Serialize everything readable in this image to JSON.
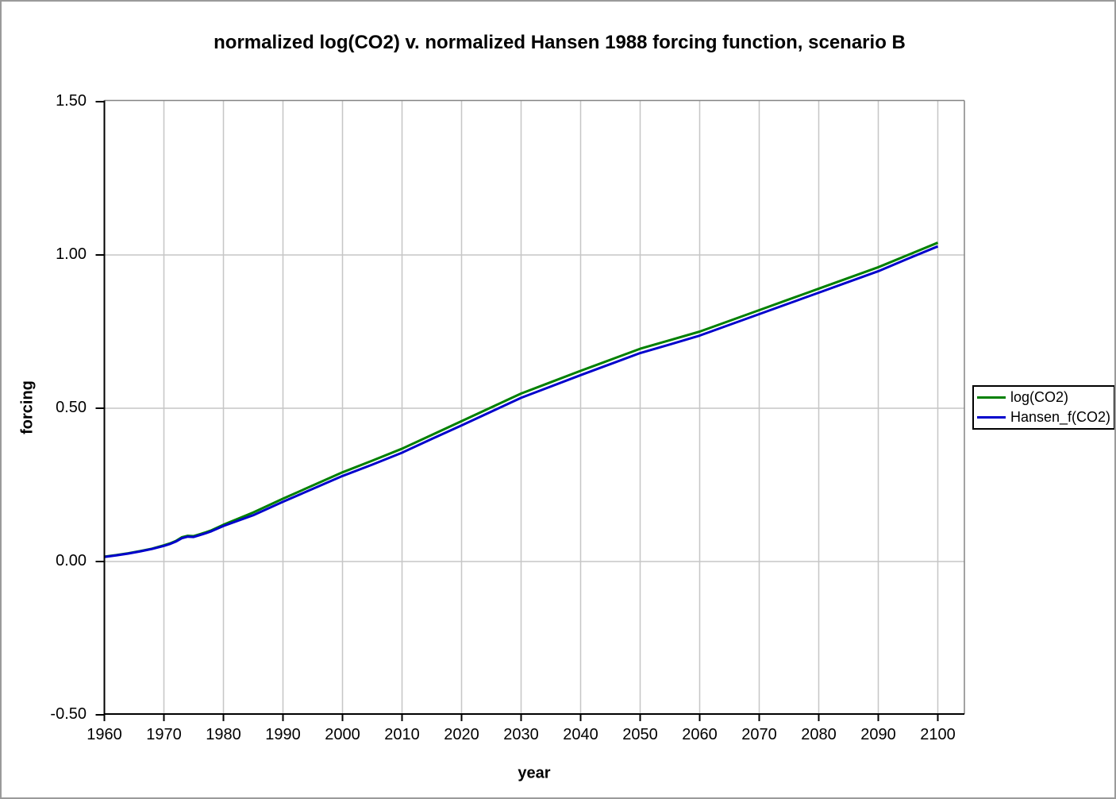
{
  "window": {
    "background": "#ffffff",
    "border_color": "#9a9a9a"
  },
  "chart_data": {
    "type": "line",
    "title": "normalized log(CO2) v. normalized Hansen 1988 forcing function, scenario B",
    "xlabel": "year",
    "ylabel": "forcing",
    "xlim": [
      1960,
      2104.4
    ],
    "ylim": [
      -0.5,
      1.5
    ],
    "grid": true,
    "legend_position": "right-outside",
    "x_ticks": [
      1960,
      1970,
      1980,
      1990,
      2000,
      2010,
      2020,
      2030,
      2040,
      2050,
      2060,
      2070,
      2080,
      2090,
      2100
    ],
    "x_tick_labels": [
      "1960",
      "1970",
      "1980",
      "1990",
      "2000",
      "2010",
      "2020",
      "2030",
      "2040",
      "2050",
      "2060",
      "2070",
      "2080",
      "2090",
      "2100"
    ],
    "y_ticks": [
      -0.5,
      0.0,
      0.5,
      1.0,
      1.5
    ],
    "y_tick_labels": [
      "-0.50",
      "0.00",
      "0.50",
      "1.00",
      "1.50"
    ],
    "x": [
      1960,
      1962,
      1964,
      1966,
      1968,
      1970,
      1971,
      1972,
      1973,
      1974,
      1975,
      1976,
      1977,
      1978,
      1980,
      1985,
      1990,
      1995,
      2000,
      2005,
      2010,
      2015,
      2020,
      2025,
      2030,
      2035,
      2040,
      2045,
      2050,
      2055,
      2060,
      2065,
      2070,
      2075,
      2080,
      2085,
      2090,
      2095,
      2100
    ],
    "series": [
      {
        "name": "log(CO2)",
        "color": "#008000",
        "values": [
          0.016,
          0.021,
          0.027,
          0.034,
          0.042,
          0.053,
          0.059,
          0.067,
          0.079,
          0.084,
          0.083,
          0.089,
          0.095,
          0.102,
          0.12,
          0.16,
          0.205,
          0.248,
          0.291,
          0.329,
          0.368,
          0.413,
          0.458,
          0.503,
          0.548,
          0.585,
          0.622,
          0.658,
          0.694,
          0.722,
          0.75,
          0.785,
          0.82,
          0.855,
          0.89,
          0.925,
          0.96,
          1.0,
          1.04
        ]
      },
      {
        "name": "Hansen_f(CO2)",
        "color": "#0000cc",
        "values": [
          0.015,
          0.02,
          0.026,
          0.033,
          0.041,
          0.051,
          0.057,
          0.065,
          0.076,
          0.081,
          0.08,
          0.086,
          0.092,
          0.099,
          0.116,
          0.151,
          0.195,
          0.237,
          0.279,
          0.316,
          0.355,
          0.4,
          0.444,
          0.489,
          0.534,
          0.571,
          0.608,
          0.644,
          0.68,
          0.708,
          0.737,
          0.772,
          0.807,
          0.842,
          0.877,
          0.912,
          0.947,
          0.988,
          1.028
        ]
      }
    ],
    "colors": {
      "gridline": "#c6c6c6",
      "plot_border": "#848484",
      "axis": "#000000"
    }
  }
}
